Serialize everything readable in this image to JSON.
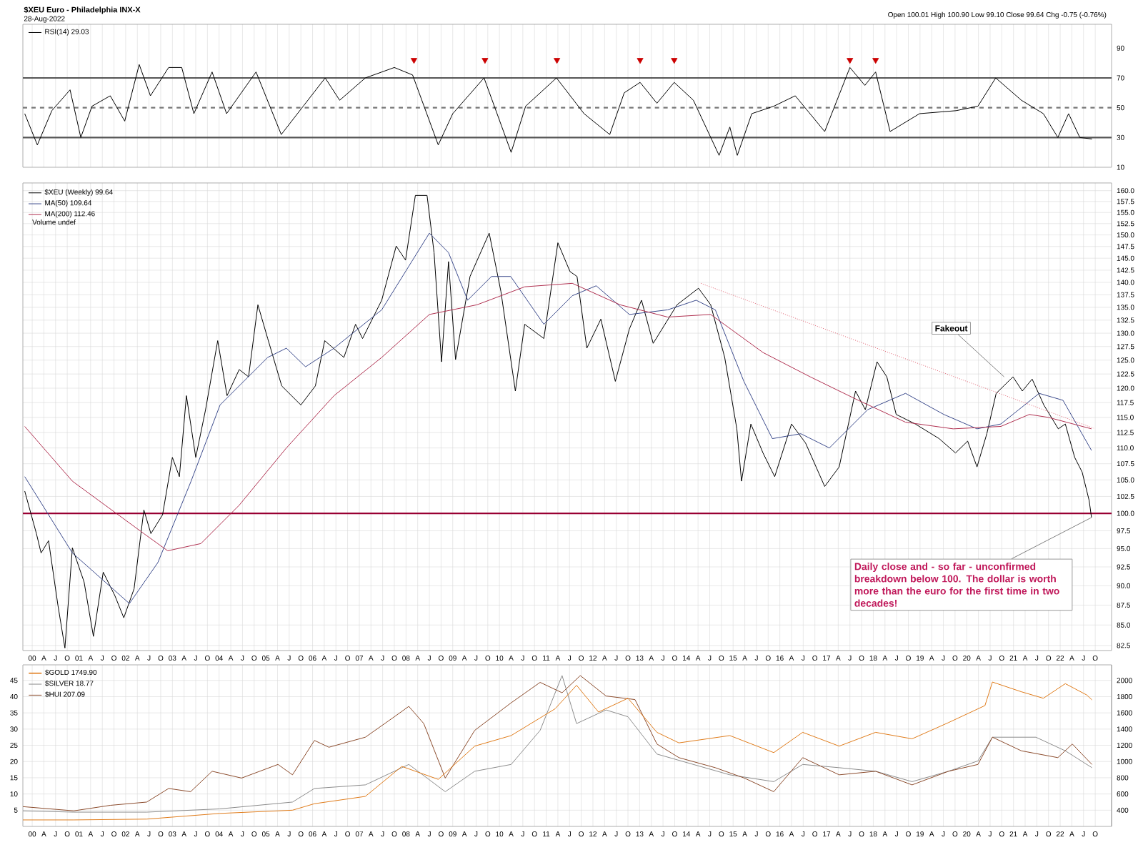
{
  "chart_data": [
    {
      "type": "line",
      "title": "$XEU Euro - Philadelphia INX-X",
      "subtitle": "28-Aug-2022",
      "annotations": [
        "Open 100.01 High 100.90 Low 99.10 Close 99.64 Chg -0.75 (-0.76%)"
      ],
      "xlim": [
        1999.8,
        2023.1
      ],
      "ylim": [
        10,
        106
      ],
      "yticks": [
        10,
        30,
        50,
        70,
        90
      ],
      "tick_labels": "y",
      "grid": "x",
      "legend": "top left",
      "xticks": [
        2000,
        2000.25,
        2000.5,
        2000.75,
        2001,
        2001.25,
        2001.5,
        2001.75,
        2002,
        2002.25,
        2002.5,
        2002.75,
        2003,
        2003.25,
        2003.5,
        2003.75,
        2004,
        2004.25,
        2004.5,
        2004.75,
        2005,
        2005.25,
        2005.5,
        2005.75,
        2006,
        2006.25,
        2006.5,
        2006.75,
        2007,
        2007.25,
        2007.5,
        2007.75,
        2008,
        2008.25,
        2008.5,
        2008.75,
        2009,
        2009.25,
        2009.5,
        2009.75,
        2010,
        2010.25,
        2010.5,
        2010.75,
        2011,
        2011.25,
        2011.5,
        2011.75,
        2012,
        2012.25,
        2012.5,
        2012.75,
        2013,
        2013.25,
        2013.5,
        2013.75,
        2014,
        2014.25,
        2014.5,
        2014.75,
        2015,
        2015.25,
        2015.5,
        2015.75,
        2016,
        2016.25,
        2016.5,
        2016.75,
        2017,
        2017.25,
        2017.5,
        2017.75,
        2018,
        2018.25,
        2018.5,
        2018.75,
        2019,
        2019.25,
        2019.5,
        2019.75,
        2020,
        2020.25,
        2020.5,
        2020.75,
        2021,
        2021.25,
        2021.5,
        2021.75,
        2022,
        2022.25,
        2022.5,
        2022.75
      ],
      "ref_lines": [
        {
          "axis": "y",
          "value": 30,
          "color": "#555555"
        },
        {
          "axis": "y",
          "value": 50,
          "color": "#777777",
          "line_style": "dashed"
        },
        {
          "axis": "y",
          "value": 70,
          "color": "#555555"
        }
      ],
      "series": [
        {
          "name": "RSI(14) 29.03",
          "type": "line",
          "color": "#000000",
          "x": [
            1999.84,
            2000.11,
            2000.42,
            2000.81,
            2001.04,
            2001.28,
            2001.67,
            2001.98,
            2002.29,
            2002.53,
            2002.92,
            2003.2,
            2003.46,
            2003.85,
            2004.16,
            2004.79,
            2005.33,
            2005.8,
            2006.27,
            2006.58,
            2007.13,
            2007.75,
            2008.14,
            2008.69,
            2009.0,
            2009.67,
            2010.25,
            2010.56,
            2011.22,
            2011.81,
            2012.36,
            2012.67,
            2013.01,
            2013.37,
            2013.74,
            2014.15,
            2014.7,
            2014.93,
            2015.09,
            2015.4,
            2015.87,
            2016.33,
            2016.96,
            2017.5,
            2017.82,
            2018.05,
            2018.36,
            2018.99,
            2019.77,
            2020.24,
            2020.62,
            2021.17,
            2021.64,
            2021.95,
            2022.18,
            2022.42,
            2022.68
          ],
          "values": [
            46,
            25,
            48,
            62,
            30,
            51,
            58,
            41,
            79,
            58,
            77,
            77,
            46,
            74,
            46,
            74,
            32,
            51,
            70,
            55,
            70,
            77,
            72,
            25,
            46,
            70,
            20,
            51,
            70,
            46,
            32,
            60,
            67,
            53,
            67,
            55,
            18,
            37,
            18,
            46,
            51,
            58,
            34,
            77,
            65,
            74,
            34,
            46,
            48,
            51,
            70,
            55,
            46,
            30,
            46,
            30,
            29
          ]
        },
        {
          "type": "scatter",
          "color": "#cc0000",
          "x": [
            2008.17,
            2009.69,
            2011.23,
            2013.01,
            2013.74,
            2017.5,
            2018.05
          ],
          "values": [
            82,
            82,
            82,
            82,
            82,
            82,
            82
          ]
        }
      ]
    },
    {
      "type": "line",
      "log": "y",
      "xlim": [
        1999.8,
        2023.1
      ],
      "ylim": [
        81.9,
        161.8
      ],
      "grid": true,
      "legend": "top left",
      "annotations": [
        {
          "text": "Fakeout",
          "x": 2020.8,
          "y": 122
        },
        {
          "text": "Daily close and - so far - unconfirmed breakdown below 100. The dollar is worth more than the euro for the first time in two decades!",
          "x": 2022.67,
          "y": 99.4
        },
        "Volume undef"
      ],
      "yticks": [
        82.5,
        {
          "value": 85,
          "label": "85.0"
        },
        87.5,
        {
          "value": 90,
          "label": "90.0"
        },
        92.5,
        {
          "value": 95,
          "label": "95.0"
        },
        97.5,
        {
          "value": 100,
          "label": "100.0"
        },
        102.5,
        {
          "value": 105,
          "label": "105.0"
        },
        107.5,
        {
          "value": 110,
          "label": "110.0"
        },
        112.5,
        {
          "value": 115,
          "label": "115.0"
        },
        117.5,
        {
          "value": 120,
          "label": "120.0"
        },
        122.5,
        {
          "value": 125,
          "label": "125.0"
        },
        127.5,
        {
          "value": 130,
          "label": "130.0"
        },
        132.5,
        {
          "value": 135,
          "label": "135.0"
        },
        137.5,
        {
          "value": 140,
          "label": "140.0"
        },
        142.5,
        {
          "value": 145,
          "label": "145.0"
        },
        147.5,
        {
          "value": 150,
          "label": "150.0"
        },
        152.5,
        {
          "value": 155,
          "label": "155.0"
        },
        157.5,
        {
          "value": 160,
          "label": "160.0"
        }
      ],
      "xticks": [
        {
          "value": 2000,
          "label": "00"
        },
        {
          "value": 2000.25,
          "label": "A"
        },
        {
          "value": 2000.5,
          "label": "J"
        },
        {
          "value": 2000.75,
          "label": "O"
        },
        {
          "value": 2001,
          "label": "01"
        },
        {
          "value": 2001.25,
          "label": "A"
        },
        {
          "value": 2001.5,
          "label": "J"
        },
        {
          "value": 2001.75,
          "label": "O"
        },
        {
          "value": 2002,
          "label": "02"
        },
        {
          "value": 2002.25,
          "label": "A"
        },
        {
          "value": 2002.5,
          "label": "J"
        },
        {
          "value": 2002.75,
          "label": "O"
        },
        {
          "value": 2003,
          "label": "03"
        },
        {
          "value": 2003.25,
          "label": "A"
        },
        {
          "value": 2003.5,
          "label": "J"
        },
        {
          "value": 2003.75,
          "label": "O"
        },
        {
          "value": 2004,
          "label": "04"
        },
        {
          "value": 2004.25,
          "label": "A"
        },
        {
          "value": 2004.5,
          "label": "J"
        },
        {
          "value": 2004.75,
          "label": "O"
        },
        {
          "value": 2005,
          "label": "05"
        },
        {
          "value": 2005.25,
          "label": "A"
        },
        {
          "value": 2005.5,
          "label": "J"
        },
        {
          "value": 2005.75,
          "label": "O"
        },
        {
          "value": 2006,
          "label": "06"
        },
        {
          "value": 2006.25,
          "label": "A"
        },
        {
          "value": 2006.5,
          "label": "J"
        },
        {
          "value": 2006.75,
          "label": "O"
        },
        {
          "value": 2007,
          "label": "07"
        },
        {
          "value": 2007.25,
          "label": "A"
        },
        {
          "value": 2007.5,
          "label": "J"
        },
        {
          "value": 2007.75,
          "label": "O"
        },
        {
          "value": 2008,
          "label": "08"
        },
        {
          "value": 2008.25,
          "label": "A"
        },
        {
          "value": 2008.5,
          "label": "J"
        },
        {
          "value": 2008.75,
          "label": "O"
        },
        {
          "value": 2009,
          "label": "09"
        },
        {
          "value": 2009.25,
          "label": "A"
        },
        {
          "value": 2009.5,
          "label": "J"
        },
        {
          "value": 2009.75,
          "label": "O"
        },
        {
          "value": 2010,
          "label": "10"
        },
        {
          "value": 2010.25,
          "label": "A"
        },
        {
          "value": 2010.5,
          "label": "J"
        },
        {
          "value": 2010.75,
          "label": "O"
        },
        {
          "value": 2011,
          "label": "11"
        },
        {
          "value": 2011.25,
          "label": "A"
        },
        {
          "value": 2011.5,
          "label": "J"
        },
        {
          "value": 2011.75,
          "label": "O"
        },
        {
          "value": 2012,
          "label": "12"
        },
        {
          "value": 2012.25,
          "label": "A"
        },
        {
          "value": 2012.5,
          "label": "J"
        },
        {
          "value": 2012.75,
          "label": "O"
        },
        {
          "value": 2013,
          "label": "13"
        },
        {
          "value": 2013.25,
          "label": "A"
        },
        {
          "value": 2013.5,
          "label": "J"
        },
        {
          "value": 2013.75,
          "label": "O"
        },
        {
          "value": 2014,
          "label": "14"
        },
        {
          "value": 2014.25,
          "label": "A"
        },
        {
          "value": 2014.5,
          "label": "J"
        },
        {
          "value": 2014.75,
          "label": "O"
        },
        {
          "value": 2015,
          "label": "15"
        },
        {
          "value": 2015.25,
          "label": "A"
        },
        {
          "value": 2015.5,
          "label": "J"
        },
        {
          "value": 2015.75,
          "label": "O"
        },
        {
          "value": 2016,
          "label": "16"
        },
        {
          "value": 2016.25,
          "label": "A"
        },
        {
          "value": 2016.5,
          "label": "J"
        },
        {
          "value": 2016.75,
          "label": "O"
        },
        {
          "value": 2017,
          "label": "17"
        },
        {
          "value": 2017.25,
          "label": "A"
        },
        {
          "value": 2017.5,
          "label": "J"
        },
        {
          "value": 2017.75,
          "label": "O"
        },
        {
          "value": 2018,
          "label": "18"
        },
        {
          "value": 2018.25,
          "label": "A"
        },
        {
          "value": 2018.5,
          "label": "J"
        },
        {
          "value": 2018.75,
          "label": "O"
        },
        {
          "value": 2019,
          "label": "19"
        },
        {
          "value": 2019.25,
          "label": "A"
        },
        {
          "value": 2019.5,
          "label": "J"
        },
        {
          "value": 2019.75,
          "label": "O"
        },
        {
          "value": 2020,
          "label": "20"
        },
        {
          "value": 2020.25,
          "label": "A"
        },
        {
          "value": 2020.5,
          "label": "J"
        },
        {
          "value": 2020.75,
          "label": "O"
        },
        {
          "value": 2021,
          "label": "21"
        },
        {
          "value": 2021.25,
          "label": "A"
        },
        {
          "value": 2021.5,
          "label": "J"
        },
        {
          "value": 2021.75,
          "label": "O"
        },
        {
          "value": 2022,
          "label": "22"
        },
        {
          "value": 2022.25,
          "label": "A"
        },
        {
          "value": 2022.5,
          "label": "J"
        },
        {
          "value": 2022.75,
          "label": "O"
        }
      ],
      "ref_lines": [
        {
          "axis": "y",
          "value": 100,
          "color": "#990033"
        }
      ],
      "series": [
        {
          "name": "$XEU (Weekly) 99.64",
          "color": "#000000",
          "x": [
            1999.84,
            2000.09,
            2000.19,
            2000.35,
            2000.55,
            2000.7,
            2000.86,
            2001.11,
            2001.31,
            2001.52,
            2001.77,
            2001.96,
            2002.18,
            2002.39,
            2002.54,
            2002.79,
            2003.0,
            2003.15,
            2003.3,
            2003.5,
            2003.71,
            2003.97,
            2004.17,
            2004.43,
            2004.63,
            2004.83,
            2005.04,
            2005.34,
            2005.75,
            2006.06,
            2006.26,
            2006.67,
            2006.92,
            2007.07,
            2007.48,
            2007.79,
            2007.99,
            2008.2,
            2008.45,
            2008.6,
            2008.76,
            2008.91,
            2009.06,
            2009.37,
            2009.78,
            2010.03,
            2010.34,
            2010.54,
            2010.95,
            2011.25,
            2011.51,
            2011.66,
            2011.87,
            2012.17,
            2012.48,
            2012.78,
            2013.04,
            2013.29,
            2013.8,
            2014.26,
            2014.52,
            2014.82,
            2015.08,
            2015.18,
            2015.38,
            2015.64,
            2015.89,
            2016.25,
            2016.55,
            2016.96,
            2017.27,
            2017.62,
            2017.83,
            2018.08,
            2018.29,
            2018.49,
            2018.9,
            2019.41,
            2019.76,
            2020.02,
            2020.22,
            2020.43,
            2020.63,
            2020.99,
            2021.19,
            2021.4,
            2021.65,
            2021.96,
            2022.11,
            2022.31,
            2022.47,
            2022.62,
            2022.67
          ],
          "values": [
            103.3,
            97.1,
            94.4,
            96.1,
            87.5,
            82.2,
            95.1,
            90.5,
            83.6,
            91.8,
            88.7,
            85.9,
            89.6,
            100.5,
            97.1,
            99.8,
            108.5,
            105.5,
            118.7,
            108.5,
            116.3,
            128.6,
            118.7,
            123.3,
            122.0,
            135.5,
            129.0,
            120.4,
            117.1,
            120.4,
            128.6,
            125.5,
            131.7,
            129.0,
            136.4,
            147.6,
            144.6,
            158.9,
            158.9,
            146.2,
            124.7,
            144.3,
            125.1,
            141.2,
            150.4,
            138.2,
            119.5,
            131.7,
            129.0,
            148.3,
            142.2,
            141.2,
            127.2,
            132.7,
            121.2,
            130.8,
            136.4,
            128.1,
            135.5,
            138.8,
            135.5,
            125.5,
            113.1,
            104.8,
            113.9,
            109.2,
            105.5,
            113.9,
            110.8,
            104.0,
            107.0,
            119.5,
            116.3,
            124.7,
            122.0,
            115.5,
            113.9,
            111.5,
            109.2,
            111.1,
            107.0,
            112.3,
            119.1,
            122.0,
            119.5,
            121.6,
            117.1,
            113.1,
            113.9,
            108.5,
            106.2,
            101.9,
            99.4
          ]
        },
        {
          "name": "MA(50) 109.64",
          "color": "#3b4a8c",
          "x": [
            1999.84,
            2000.86,
            2002.08,
            2002.69,
            2003.4,
            2004.02,
            2005.04,
            2005.44,
            2005.85,
            2006.46,
            2007.48,
            2008.5,
            2008.91,
            2009.32,
            2009.83,
            2010.24,
            2010.95,
            2011.56,
            2012.07,
            2012.78,
            2013.6,
            2014.21,
            2014.62,
            2015.23,
            2015.84,
            2016.45,
            2017.06,
            2017.88,
            2018.69,
            2019.51,
            2020.22,
            2020.73,
            2021.55,
            2022.06,
            2022.67
          ],
          "values": [
            105.5,
            94.4,
            87.7,
            93.1,
            104.8,
            117.1,
            125.5,
            127.2,
            123.8,
            127.2,
            134.5,
            150.4,
            146.2,
            136.4,
            141.2,
            141.2,
            131.7,
            137.3,
            139.3,
            133.6,
            134.5,
            136.4,
            134.5,
            121.2,
            111.5,
            112.3,
            110.0,
            116.3,
            119.1,
            115.5,
            113.1,
            113.9,
            119.1,
            117.9,
            109.6
          ]
        },
        {
          "name": "MA(200) 112.46",
          "color": "#b03050",
          "x": [
            1999.84,
            2000.86,
            2002.39,
            2002.9,
            2003.61,
            2004.43,
            2005.44,
            2006.46,
            2007.48,
            2008.5,
            2009.52,
            2010.54,
            2011.56,
            2012.58,
            2013.6,
            2014.52,
            2015.64,
            2016.65,
            2017.68,
            2018.69,
            2019.71,
            2020.73,
            2021.34,
            2021.75,
            2022.67
          ],
          "values": [
            113.5,
            104.8,
            97.1,
            94.7,
            95.7,
            101.2,
            110.0,
            118.7,
            125.5,
            133.6,
            135.5,
            139.1,
            139.8,
            135.5,
            133.1,
            133.6,
            126.4,
            122.0,
            117.9,
            114.2,
            113.1,
            113.5,
            115.5,
            115.0,
            113.1
          ]
        },
        {
          "type": "line",
          "color": "#e06070",
          "line_style": "dotted",
          "x": [
            2014.31,
            2022.72
          ],
          "values": [
            139.8,
            113.2
          ]
        }
      ]
    },
    {
      "type": "line",
      "xlim": [
        1999.8,
        2023.1
      ],
      "ylim": [
        0,
        49.8
      ],
      "yticks": [
        5,
        10,
        15,
        20,
        25,
        30,
        35,
        40,
        45
      ],
      "y2lim": [
        200,
        2192
      ],
      "y2ticks": [
        400,
        600,
        800,
        1000,
        1200,
        1400,
        1600,
        1800,
        2000
      ],
      "grid": true,
      "legend": "top left",
      "xticks": [
        {
          "value": 2000,
          "label": "00"
        },
        {
          "value": 2000.25,
          "label": "A"
        },
        {
          "value": 2000.5,
          "label": "J"
        },
        {
          "value": 2000.75,
          "label": "O"
        },
        {
          "value": 2001,
          "label": "01"
        },
        {
          "value": 2001.25,
          "label": "A"
        },
        {
          "value": 2001.5,
          "label": "J"
        },
        {
          "value": 2001.75,
          "label": "O"
        },
        {
          "value": 2002,
          "label": "02"
        },
        {
          "value": 2002.25,
          "label": "A"
        },
        {
          "value": 2002.5,
          "label": "J"
        },
        {
          "value": 2002.75,
          "label": "O"
        },
        {
          "value": 2003,
          "label": "03"
        },
        {
          "value": 2003.25,
          "label": "A"
        },
        {
          "value": 2003.5,
          "label": "J"
        },
        {
          "value": 2003.75,
          "label": "O"
        },
        {
          "value": 2004,
          "label": "04"
        },
        {
          "value": 2004.25,
          "label": "A"
        },
        {
          "value": 2004.5,
          "label": "J"
        },
        {
          "value": 2004.75,
          "label": "O"
        },
        {
          "value": 2005,
          "label": "05"
        },
        {
          "value": 2005.25,
          "label": "A"
        },
        {
          "value": 2005.5,
          "label": "J"
        },
        {
          "value": 2005.75,
          "label": "O"
        },
        {
          "value": 2006,
          "label": "06"
        },
        {
          "value": 2006.25,
          "label": "A"
        },
        {
          "value": 2006.5,
          "label": "J"
        },
        {
          "value": 2006.75,
          "label": "O"
        },
        {
          "value": 2007,
          "label": "07"
        },
        {
          "value": 2007.25,
          "label": "A"
        },
        {
          "value": 2007.5,
          "label": "J"
        },
        {
          "value": 2007.75,
          "label": "O"
        },
        {
          "value": 2008,
          "label": "08"
        },
        {
          "value": 2008.25,
          "label": "A"
        },
        {
          "value": 2008.5,
          "label": "J"
        },
        {
          "value": 2008.75,
          "label": "O"
        },
        {
          "value": 2009,
          "label": "09"
        },
        {
          "value": 2009.25,
          "label": "A"
        },
        {
          "value": 2009.5,
          "label": "J"
        },
        {
          "value": 2009.75,
          "label": "O"
        },
        {
          "value": 2010,
          "label": "10"
        },
        {
          "value": 2010.25,
          "label": "A"
        },
        {
          "value": 2010.5,
          "label": "J"
        },
        {
          "value": 2010.75,
          "label": "O"
        },
        {
          "value": 2011,
          "label": "11"
        },
        {
          "value": 2011.25,
          "label": "A"
        },
        {
          "value": 2011.5,
          "label": "J"
        },
        {
          "value": 2011.75,
          "label": "O"
        },
        {
          "value": 2012,
          "label": "12"
        },
        {
          "value": 2012.25,
          "label": "A"
        },
        {
          "value": 2012.5,
          "label": "J"
        },
        {
          "value": 2012.75,
          "label": "O"
        },
        {
          "value": 2013,
          "label": "13"
        },
        {
          "value": 2013.25,
          "label": "A"
        },
        {
          "value": 2013.5,
          "label": "J"
        },
        {
          "value": 2013.75,
          "label": "O"
        },
        {
          "value": 2014,
          "label": "14"
        },
        {
          "value": 2014.25,
          "label": "A"
        },
        {
          "value": 2014.5,
          "label": "J"
        },
        {
          "value": 2014.75,
          "label": "O"
        },
        {
          "value": 2015,
          "label": "15"
        },
        {
          "value": 2015.25,
          "label": "A"
        },
        {
          "value": 2015.5,
          "label": "J"
        },
        {
          "value": 2015.75,
          "label": "O"
        },
        {
          "value": 2016,
          "label": "16"
        },
        {
          "value": 2016.25,
          "label": "A"
        },
        {
          "value": 2016.5,
          "label": "J"
        },
        {
          "value": 2016.75,
          "label": "O"
        },
        {
          "value": 2017,
          "label": "17"
        },
        {
          "value": 2017.25,
          "label": "A"
        },
        {
          "value": 2017.5,
          "label": "J"
        },
        {
          "value": 2017.75,
          "label": "O"
        },
        {
          "value": 2018,
          "label": "18"
        },
        {
          "value": 2018.25,
          "label": "A"
        },
        {
          "value": 2018.5,
          "label": "J"
        },
        {
          "value": 2018.75,
          "label": "O"
        },
        {
          "value": 2019,
          "label": "19"
        },
        {
          "value": 2019.25,
          "label": "A"
        },
        {
          "value": 2019.5,
          "label": "J"
        },
        {
          "value": 2019.75,
          "label": "O"
        },
        {
          "value": 2020,
          "label": "20"
        },
        {
          "value": 2020.25,
          "label": "A"
        },
        {
          "value": 2020.5,
          "label": "J"
        },
        {
          "value": 2020.75,
          "label": "O"
        },
        {
          "value": 2021,
          "label": "21"
        },
        {
          "value": 2021.25,
          "label": "A"
        },
        {
          "value": 2021.5,
          "label": "J"
        },
        {
          "value": 2021.75,
          "label": "O"
        },
        {
          "value": 2022,
          "label": "22"
        },
        {
          "value": 2022.25,
          "label": "A"
        },
        {
          "value": 2022.5,
          "label": "J"
        },
        {
          "value": 2022.75,
          "label": "O"
        }
      ],
      "series": [
        {
          "name": "$GOLD 1749.90",
          "axis": "y2",
          "color": "#e07b1a",
          "x": [
            1999.8,
            2000.89,
            2002.45,
            2004.01,
            2005.57,
            2006.04,
            2007.13,
            2007.91,
            2008.69,
            2009.47,
            2010.25,
            2011.19,
            2011.65,
            2012.12,
            2012.75,
            2013.37,
            2013.84,
            2014.93,
            2015.87,
            2016.49,
            2017.27,
            2018.05,
            2018.83,
            2019.61,
            2020.39,
            2020.55,
            2021.17,
            2021.64,
            2022.11,
            2022.57,
            2022.68
          ],
          "values": [
            280,
            280,
            290,
            360,
            400,
            480,
            570,
            940,
            780,
            1190,
            1320,
            1650,
            1940,
            1610,
            1780,
            1360,
            1230,
            1320,
            1110,
            1360,
            1190,
            1360,
            1280,
            1480,
            1690,
            1980,
            1860,
            1780,
            1960,
            1820,
            1760
          ]
        },
        {
          "name": "$SILVER 18.77",
          "color": "#8c8c8c",
          "x": [
            1999.8,
            2000.89,
            2002.45,
            2004.01,
            2005.57,
            2006.04,
            2007.13,
            2008.06,
            2008.84,
            2009.47,
            2010.25,
            2010.87,
            2011.34,
            2011.65,
            2012.28,
            2012.75,
            2013.37,
            2014.15,
            2014.93,
            2015.87,
            2016.49,
            2017.27,
            2018.05,
            2018.83,
            2019.61,
            2020.24,
            2020.55,
            2021.48,
            2022.11,
            2022.68
          ],
          "values": [
            4.8,
            4.4,
            4.4,
            5.4,
            7.5,
            11.7,
            12.8,
            19.1,
            10.7,
            17.0,
            19.1,
            29.6,
            46.5,
            31.7,
            35.9,
            33.8,
            22.3,
            19.1,
            15.9,
            13.8,
            19.1,
            18.1,
            17.0,
            13.8,
            17.0,
            20.2,
            27.5,
            27.5,
            23.3,
            18.1
          ]
        },
        {
          "name": "$HUI 207.09",
          "color": "#8b4a2b",
          "x": [
            1999.8,
            2000.89,
            2001.67,
            2002.45,
            2002.92,
            2003.39,
            2003.85,
            2004.48,
            2005.26,
            2005.57,
            2006.04,
            2006.35,
            2007.13,
            2007.75,
            2008.06,
            2008.38,
            2008.84,
            2009.47,
            2010.25,
            2010.87,
            2011.34,
            2011.73,
            2012.28,
            2012.9,
            2013.37,
            2013.84,
            2014.62,
            2015.24,
            2015.87,
            2016.49,
            2017.27,
            2018.05,
            2018.83,
            2019.61,
            2020.24,
            2020.55,
            2021.17,
            2021.95,
            2022.26,
            2022.68
          ],
          "values": [
            6.1,
            4.8,
            6.5,
            7.5,
            11.7,
            10.7,
            17.0,
            14.9,
            19.1,
            15.9,
            26.5,
            24.4,
            27.5,
            33.8,
            37.0,
            31.7,
            14.9,
            29.6,
            38.1,
            44.4,
            41.2,
            46.5,
            40.2,
            39.1,
            25.4,
            21.2,
            18.1,
            14.9,
            10.7,
            21.2,
            15.9,
            17.0,
            12.8,
            17.0,
            19.1,
            27.5,
            23.3,
            21.2,
            25.4,
            19.1
          ]
        }
      ]
    }
  ]
}
